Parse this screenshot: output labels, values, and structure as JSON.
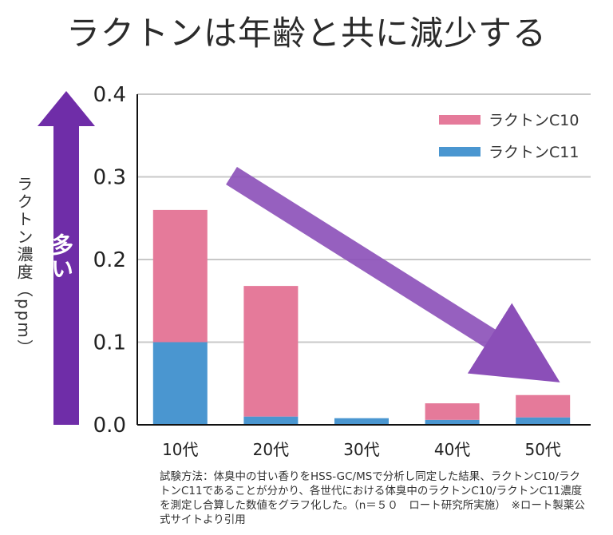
{
  "title": "ラクトンは年齢と共に減少する",
  "arrow_label": "多い",
  "footnote": "試験方法：体臭中の甘い香りをHSS-GC/MSで分析し同定した結果、ラクトンC10/ラクトンC11であることが分かり、各世代における体臭中のラクトンC10/ラクトンC11濃度を測定し合算した数値をグラフ化した。（n＝５０　ロート研究所実施）　※ロート製薬公式サイトより引用",
  "colors": {
    "c10": "#e57a9a",
    "c11": "#4a96d0",
    "trend_arrow": "#8b4fb8",
    "axis_arrow": "#6f2da8",
    "grid": "#c8c8c8"
  },
  "chart_data": {
    "type": "bar",
    "stacked": true,
    "title": "ラクトンは年齢と共に減少する",
    "ylabel": "ラクトン濃度（ppm）",
    "xlabel": "",
    "ylim": [
      0,
      0.4
    ],
    "yticks": [
      "0.0",
      "0.1",
      "0.2",
      "0.3",
      "0.4"
    ],
    "categories": [
      "10代",
      "20代",
      "30代",
      "40代",
      "50代"
    ],
    "series": [
      {
        "name": "ラクトンC11",
        "values": [
          0.1,
          0.01,
          0.008,
          0.006,
          0.009
        ]
      },
      {
        "name": "ラクトンC10",
        "values": [
          0.16,
          0.158,
          0.0,
          0.02,
          0.027
        ]
      }
    ],
    "legend_position": "top-right",
    "grid": true
  }
}
